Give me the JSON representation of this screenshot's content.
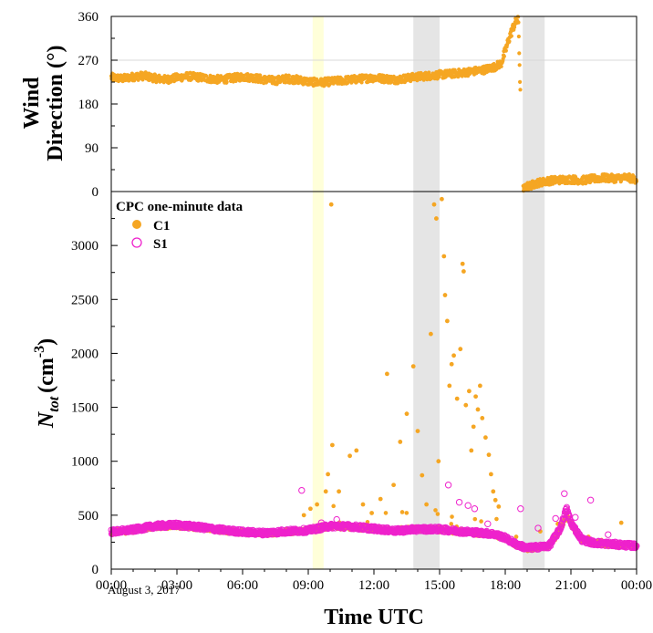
{
  "colors": {
    "c1": "#F5A623",
    "s1": "#EE22CC",
    "shade_gray": "#E5E5E5",
    "shade_yellow": "#FFFFD9",
    "axis": "#000000"
  },
  "x_axis": {
    "label": "Time UTC",
    "date_note": "August 3, 2017",
    "range_hours": [
      0,
      24
    ],
    "tick_hours": [
      0,
      3,
      6,
      9,
      12,
      15,
      18,
      21,
      24
    ],
    "tick_labels": [
      "00:00",
      "03:00",
      "06:00",
      "09:00",
      "12:00",
      "15:00",
      "18:00",
      "21:00",
      "00:00"
    ]
  },
  "shaded_periods": [
    {
      "start_hour": 9.2,
      "end_hour": 9.7,
      "color": "yellow"
    },
    {
      "start_hour": 13.8,
      "end_hour": 15.0,
      "color": "gray"
    },
    {
      "start_hour": 18.8,
      "end_hour": 19.8,
      "color": "gray"
    }
  ],
  "chart_data": [
    {
      "type": "scatter",
      "ylabel_line1": "Wind",
      "ylabel_line2": "Direction (°)",
      "ylim": [
        0,
        360
      ],
      "yticks": [
        0,
        90,
        180,
        270,
        360
      ],
      "y_minor_ticks": [
        45,
        135,
        225,
        315
      ],
      "reference_line": 270,
      "series": [
        {
          "key": "wind",
          "marker": "filled",
          "points": [
            [
              0.0,
              235
            ],
            [
              0.5,
              232
            ],
            [
              1.0,
              236
            ],
            [
              1.5,
              238
            ],
            [
              2.0,
              233
            ],
            [
              2.5,
              230
            ],
            [
              3.0,
              234
            ],
            [
              3.5,
              237
            ],
            [
              4.0,
              235
            ],
            [
              4.5,
              232
            ],
            [
              5.0,
              230
            ],
            [
              5.5,
              233
            ],
            [
              6.0,
              236
            ],
            [
              6.5,
              234
            ],
            [
              7.0,
              230
            ],
            [
              7.5,
              228
            ],
            [
              8.0,
              232
            ],
            [
              8.5,
              230
            ],
            [
              9.0,
              226
            ],
            [
              9.5,
              224
            ],
            [
              10.0,
              226
            ],
            [
              10.5,
              228
            ],
            [
              11.0,
              230
            ],
            [
              11.5,
              232
            ],
            [
              12.0,
              234
            ],
            [
              12.5,
              232
            ],
            [
              13.0,
              230
            ],
            [
              13.5,
              233
            ],
            [
              14.0,
              236
            ],
            [
              14.5,
              238
            ],
            [
              15.0,
              240
            ],
            [
              15.5,
              242
            ],
            [
              16.0,
              244
            ],
            [
              16.5,
              247
            ],
            [
              17.0,
              250
            ],
            [
              17.5,
              256
            ],
            [
              17.8,
              263
            ],
            [
              18.0,
              288
            ],
            [
              18.2,
              318
            ],
            [
              18.4,
              342
            ],
            [
              18.6,
              356
            ],
            [
              18.8,
              4
            ],
            [
              19.0,
              10
            ],
            [
              19.5,
              18
            ],
            [
              20.0,
              22
            ],
            [
              20.5,
              24
            ],
            [
              21.0,
              25
            ],
            [
              21.5,
              23
            ],
            [
              22.0,
              26
            ],
            [
              22.5,
              28
            ],
            [
              23.0,
              27
            ],
            [
              23.5,
              29
            ],
            [
              24.0,
              25
            ]
          ],
          "scatter": 8
        }
      ]
    },
    {
      "type": "scatter",
      "ylabel": "N_tot (cm^-3)",
      "ylabel_main": "N",
      "ylabel_sub": "tot",
      "ylabel_unit": "(cm",
      "ylabel_exp": "-3",
      "ylabel_close": ")",
      "ylim": [
        0,
        3500
      ],
      "yticks": [
        0,
        500,
        1000,
        1500,
        2000,
        2500,
        3000
      ],
      "y_minor_ticks": [
        250,
        750,
        1250,
        1750,
        2250,
        2750,
        3250
      ],
      "legend_title": "CPC one-minute data",
      "legend_position": "top-left",
      "series": [
        {
          "name": "C1",
          "key": "c1",
          "marker": "filled",
          "baseline": [
            [
              0.0,
              340
            ],
            [
              1.0,
              360
            ],
            [
              2.0,
              395
            ],
            [
              3.0,
              400
            ],
            [
              4.0,
              385
            ],
            [
              5.0,
              360
            ],
            [
              6.0,
              340
            ],
            [
              7.0,
              330
            ],
            [
              8.0,
              345
            ],
            [
              9.0,
              355
            ],
            [
              10.0,
              395
            ],
            [
              11.0,
              390
            ],
            [
              12.0,
              370
            ],
            [
              13.0,
              360
            ],
            [
              14.0,
              375
            ],
            [
              15.0,
              365
            ],
            [
              16.0,
              345
            ],
            [
              17.0,
              330
            ],
            [
              17.5,
              320
            ],
            [
              18.0,
              285
            ],
            [
              18.5,
              225
            ],
            [
              19.0,
              190
            ],
            [
              19.5,
              200
            ],
            [
              20.0,
              210
            ],
            [
              20.5,
              360
            ],
            [
              20.8,
              500
            ],
            [
              21.0,
              420
            ],
            [
              21.5,
              270
            ],
            [
              22.0,
              240
            ],
            [
              23.0,
              225
            ],
            [
              24.0,
              210
            ]
          ],
          "spikes": [
            [
              8.8,
              500
            ],
            [
              9.1,
              560
            ],
            [
              9.4,
              600
            ],
            [
              9.8,
              720
            ],
            [
              9.9,
              880
            ],
            [
              10.05,
              3380
            ],
            [
              10.1,
              1150
            ],
            [
              10.4,
              720
            ],
            [
              10.9,
              1050
            ],
            [
              11.2,
              1100
            ],
            [
              11.5,
              600
            ],
            [
              11.9,
              520
            ],
            [
              12.3,
              650
            ],
            [
              12.6,
              1810
            ],
            [
              12.9,
              780
            ],
            [
              13.2,
              1180
            ],
            [
              13.5,
              1440
            ],
            [
              13.8,
              1880
            ],
            [
              14.0,
              1280
            ],
            [
              14.2,
              870
            ],
            [
              14.4,
              600
            ],
            [
              14.6,
              2180
            ],
            [
              14.75,
              3380
            ],
            [
              14.85,
              3250
            ],
            [
              14.95,
              1000
            ],
            [
              15.1,
              3430
            ],
            [
              15.2,
              2900
            ],
            [
              15.25,
              2540
            ],
            [
              15.35,
              2300
            ],
            [
              15.45,
              1700
            ],
            [
              15.55,
              1900
            ],
            [
              15.65,
              1980
            ],
            [
              15.8,
              1580
            ],
            [
              15.95,
              2040
            ],
            [
              16.05,
              2830
            ],
            [
              16.1,
              2760
            ],
            [
              16.2,
              1520
            ],
            [
              16.35,
              1650
            ],
            [
              16.45,
              1100
            ],
            [
              16.55,
              1320
            ],
            [
              16.65,
              1600
            ],
            [
              16.75,
              1480
            ],
            [
              16.85,
              1700
            ],
            [
              16.95,
              1400
            ],
            [
              17.1,
              1220
            ],
            [
              17.25,
              1060
            ],
            [
              17.35,
              880
            ],
            [
              17.45,
              720
            ],
            [
              17.55,
              640
            ],
            [
              17.7,
              580
            ],
            [
              18.5,
              300
            ],
            [
              19.6,
              350
            ],
            [
              20.4,
              420
            ],
            [
              21.8,
              300
            ],
            [
              22.4,
              270
            ],
            [
              23.3,
              430
            ]
          ]
        },
        {
          "name": "S1",
          "key": "s1",
          "marker": "open",
          "baseline": [
            [
              0.0,
              345
            ],
            [
              1.0,
              365
            ],
            [
              2.0,
              400
            ],
            [
              3.0,
              410
            ],
            [
              4.0,
              390
            ],
            [
              5.0,
              365
            ],
            [
              6.0,
              345
            ],
            [
              7.0,
              335
            ],
            [
              8.0,
              350
            ],
            [
              9.0,
              360
            ],
            [
              10.0,
              400
            ],
            [
              11.0,
              395
            ],
            [
              12.0,
              375
            ],
            [
              13.0,
              355
            ],
            [
              14.0,
              370
            ],
            [
              15.0,
              370
            ],
            [
              16.0,
              350
            ],
            [
              17.0,
              335
            ],
            [
              17.5,
              325
            ],
            [
              18.0,
              290
            ],
            [
              18.5,
              230
            ],
            [
              19.0,
              195
            ],
            [
              19.5,
              205
            ],
            [
              20.0,
              215
            ],
            [
              20.5,
              370
            ],
            [
              20.8,
              560
            ],
            [
              21.0,
              430
            ],
            [
              21.5,
              275
            ],
            [
              22.0,
              245
            ],
            [
              23.0,
              230
            ],
            [
              24.0,
              215
            ]
          ],
          "spikes": [
            [
              8.7,
              730
            ],
            [
              9.6,
              430
            ],
            [
              10.3,
              460
            ],
            [
              15.4,
              780
            ],
            [
              15.9,
              620
            ],
            [
              16.3,
              590
            ],
            [
              16.6,
              560
            ],
            [
              17.2,
              420
            ],
            [
              18.7,
              560
            ],
            [
              19.5,
              380
            ],
            [
              20.3,
              470
            ],
            [
              20.7,
              700
            ],
            [
              21.2,
              480
            ],
            [
              21.9,
              640
            ],
            [
              22.7,
              320
            ]
          ]
        }
      ]
    }
  ]
}
